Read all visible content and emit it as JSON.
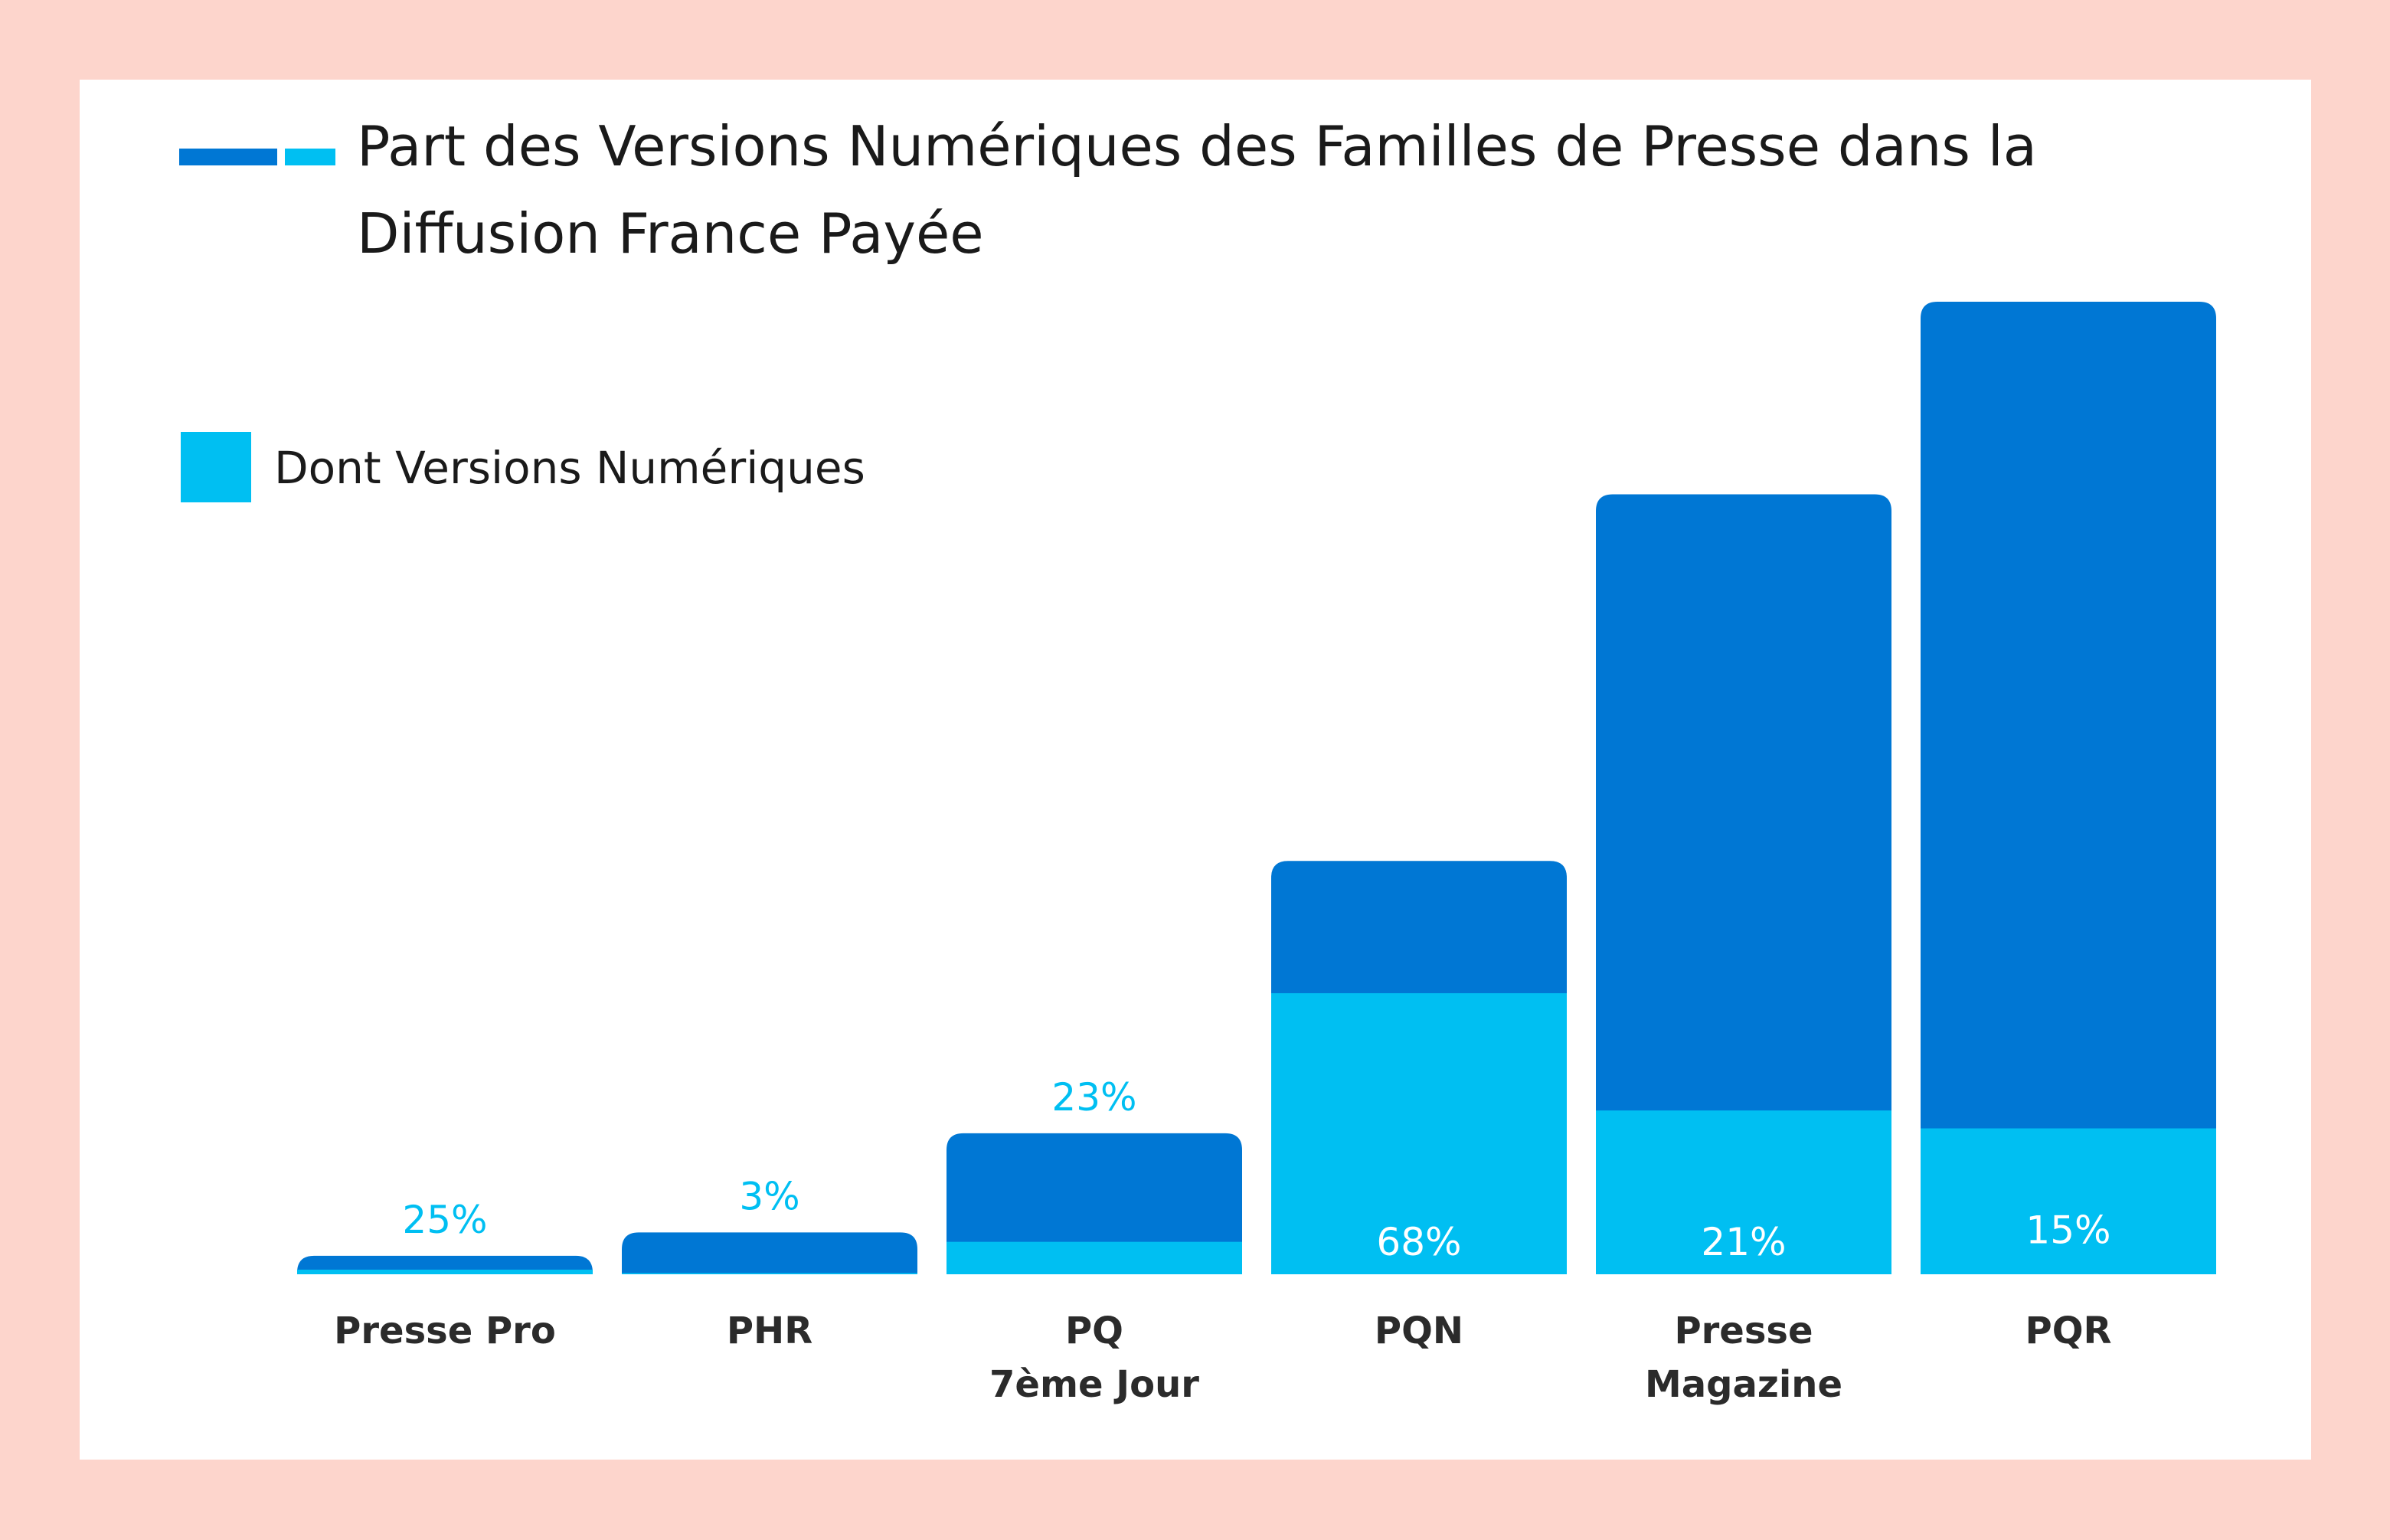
{
  "title": "Part des Versions Numériques des Familles de Presse dans la Diffusion France Payée",
  "colors": {
    "background": "#fdd5cc",
    "total": "#0077d4",
    "numeric": "#00bff2",
    "label_light": "#00bff2",
    "label_inside": "#ffffff",
    "category_text": "#2b2b2b"
  },
  "chart_data": {
    "type": "bar",
    "stacked": true,
    "title": "Part des Versions Numériques des Familles de Presse dans la Diffusion France Payée",
    "legend": {
      "position": "top-left",
      "entries": [
        "Dont Versions Numériques"
      ]
    },
    "y_axis_shown": false,
    "grid": false,
    "ylim": [
      0,
      100
    ],
    "categories": [
      {
        "lines": [
          "Presse Pro"
        ]
      },
      {
        "lines": [
          "PHR"
        ]
      },
      {
        "lines": [
          "PQ",
          "7ème Jour"
        ]
      },
      {
        "lines": [
          "PQN"
        ]
      },
      {
        "lines": [
          "Presse",
          "Magazine"
        ]
      },
      {
        "lines": [
          "PQR"
        ]
      }
    ],
    "total_relative": [
      1.9,
      4.3,
      14.5,
      42.5,
      80.2,
      100
    ],
    "series": [
      {
        "name": "Dont Versions Numériques",
        "share_percent": [
          25,
          3,
          23,
          68,
          21,
          15
        ]
      }
    ],
    "data_labels": [
      "25%",
      "3%",
      "23%",
      "68%",
      "21%",
      "15%"
    ],
    "label_inside": [
      false,
      false,
      false,
      true,
      true,
      true
    ]
  }
}
